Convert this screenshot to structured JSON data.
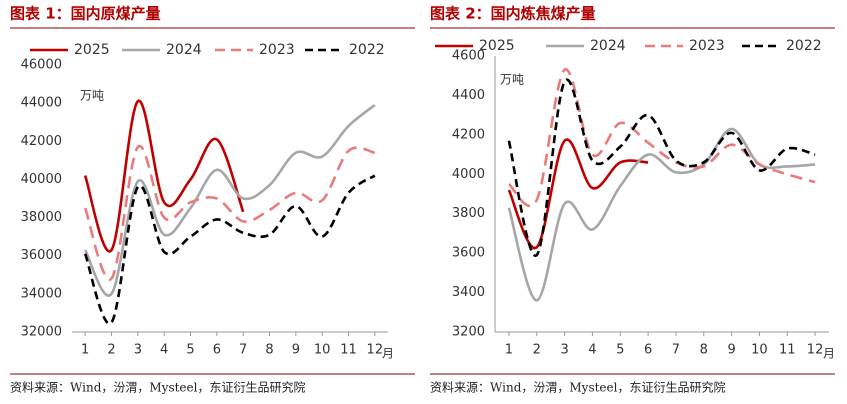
{
  "chart_data": [
    {
      "type": "line",
      "title": "图表 1：国内原煤产量",
      "unit_label": "万吨",
      "xlabel": "月",
      "source": "资料来源：Wind，汾渭，Mysteel，东证衍生品研究院",
      "x": [
        1,
        2,
        3,
        4,
        5,
        6,
        7,
        8,
        9,
        10,
        11,
        12
      ],
      "xlim": [
        0.5,
        12.5
      ],
      "xticks": [
        1,
        2,
        3,
        4,
        5,
        6,
        7,
        8,
        9,
        10,
        11,
        12
      ],
      "ylim": [
        32000,
        46000
      ],
      "yticks": [
        32000,
        34000,
        36000,
        38000,
        40000,
        42000,
        44000,
        46000
      ],
      "series": [
        {
          "name": "2025",
          "color": "#c00000",
          "style": "solid",
          "values": [
            40200,
            36300,
            44100,
            38800,
            40000,
            42100,
            38300,
            null,
            null,
            null,
            null,
            null
          ]
        },
        {
          "name": "2024",
          "color": "#a6a6a6",
          "style": "solid",
          "values": [
            36300,
            34000,
            39900,
            37100,
            38500,
            40500,
            39000,
            39700,
            41400,
            41200,
            42800,
            43900
          ]
        },
        {
          "name": "2023",
          "color": "#e87c7c",
          "style": "dashed",
          "values": [
            38500,
            34800,
            41700,
            38000,
            38800,
            39000,
            37800,
            38400,
            39300,
            38900,
            41500,
            41400
          ]
        },
        {
          "name": "2022",
          "color": "#000000",
          "style": "dashed",
          "values": [
            36100,
            32500,
            39600,
            36200,
            37000,
            37900,
            37200,
            37100,
            38600,
            37000,
            39300,
            40200
          ]
        }
      ]
    },
    {
      "type": "line",
      "title": "图表 2：国内炼焦煤产量",
      "unit_label": "万吨",
      "xlabel": "月",
      "source": "资料来源：Wind，汾渭，Mysteel，东证衍生品研究院",
      "x": [
        1,
        2,
        3,
        4,
        5,
        6,
        7,
        8,
        9,
        10,
        11,
        12
      ],
      "xlim": [
        0.5,
        12.5
      ],
      "xticks": [
        1,
        2,
        3,
        4,
        5,
        6,
        7,
        8,
        9,
        10,
        11,
        12
      ],
      "ylim": [
        3200,
        4600
      ],
      "yticks": [
        3200,
        3400,
        3600,
        3800,
        4000,
        4200,
        4400,
        4600
      ],
      "series": [
        {
          "name": "2025",
          "color": "#c00000",
          "style": "solid",
          "values": [
            3920,
            3630,
            4170,
            3930,
            4060,
            4060,
            null,
            null,
            null,
            null,
            null,
            null
          ]
        },
        {
          "name": "2024",
          "color": "#a6a6a6",
          "style": "solid",
          "values": [
            3830,
            3360,
            3850,
            3720,
            3940,
            4100,
            4010,
            4050,
            4230,
            4050,
            4040,
            4050
          ]
        },
        {
          "name": "2023",
          "color": "#e87c7c",
          "style": "dashed",
          "values": [
            3950,
            3870,
            4530,
            4100,
            4260,
            4160,
            4060,
            4040,
            4150,
            4050,
            4000,
            3960
          ]
        },
        {
          "name": "2022",
          "color": "#000000",
          "style": "dashed",
          "values": [
            4170,
            3590,
            4470,
            4070,
            4140,
            4300,
            4070,
            4060,
            4210,
            4020,
            4130,
            4100
          ]
        }
      ]
    }
  ]
}
